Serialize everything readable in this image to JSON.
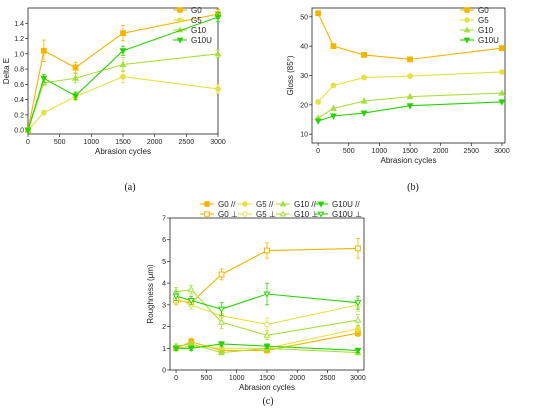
{
  "chart_data": [
    {
      "type": "line",
      "caption": "(a)",
      "xlabel": "Abrasion cycles",
      "ylabel": "Delta E",
      "xlim": [
        0,
        3000
      ],
      "ylim": [
        -0.05,
        1.6
      ],
      "xticks": [
        0,
        500,
        1000,
        1500,
        2000,
        2500,
        3000
      ],
      "yticks": [
        0.0,
        0.2,
        0.4,
        0.6,
        0.8,
        1.0,
        1.2,
        1.4
      ],
      "ytick_labels": [
        "0.0",
        "0.2",
        "0.4",
        "0.6",
        "0.8",
        "1.0",
        "1.2",
        "1.4"
      ],
      "legend_position": "top-right",
      "series": [
        {
          "name": "G0",
          "color": "#f5b400",
          "marker": "square",
          "x": [
            0,
            250,
            750,
            1500,
            3000
          ],
          "y": [
            0.0,
            1.04,
            0.82,
            1.27,
            1.52
          ],
          "err": [
            0,
            0.14,
            0.07,
            0.1,
            0.06
          ]
        },
        {
          "name": "G5",
          "color": "#e8e040",
          "marker": "circle",
          "x": [
            0,
            250,
            750,
            1500,
            3000
          ],
          "y": [
            0.0,
            0.23,
            0.44,
            0.7,
            0.54
          ],
          "err": [
            0,
            0.03,
            0.05,
            0.08,
            0.06
          ]
        },
        {
          "name": "G10",
          "color": "#a6e03c",
          "marker": "triangle-up",
          "x": [
            0,
            250,
            750,
            1500,
            3000
          ],
          "y": [
            0.0,
            0.62,
            0.68,
            0.86,
            1.0
          ],
          "err": [
            0,
            0.04,
            0.06,
            0.09,
            0.05
          ]
        },
        {
          "name": "G10U",
          "color": "#28d200",
          "marker": "triangle-down",
          "x": [
            0,
            250,
            750,
            1500,
            3000
          ],
          "y": [
            0.0,
            0.68,
            0.45,
            1.04,
            1.48
          ],
          "err": [
            0,
            0.05,
            0.05,
            0.06,
            0.06
          ]
        }
      ]
    },
    {
      "type": "line",
      "caption": "(b)",
      "xlabel": "Abrasion cycles",
      "ylabel": "Gloss (85°)",
      "xlim": [
        -100,
        3050
      ],
      "ylim": [
        7,
        53
      ],
      "xticks": [
        0,
        500,
        1000,
        1500,
        2000,
        2500,
        3000
      ],
      "yticks": [
        10,
        20,
        30,
        40,
        50
      ],
      "ytick_labels": [
        "10",
        "20",
        "30",
        "40",
        "50"
      ],
      "legend_position": "top-right",
      "series": [
        {
          "name": "G0",
          "color": "#f5b400",
          "marker": "square",
          "x": [
            0,
            250,
            750,
            1500,
            3000
          ],
          "y": [
            51.2,
            40.0,
            37.0,
            35.5,
            39.3
          ],
          "err": [
            0,
            0,
            0,
            0,
            0
          ]
        },
        {
          "name": "G5",
          "color": "#e8e040",
          "marker": "circle",
          "x": [
            0,
            250,
            750,
            1500,
            3000
          ],
          "y": [
            21.0,
            26.6,
            29.3,
            29.8,
            31.2
          ],
          "err": [
            0,
            0,
            0,
            0,
            0
          ]
        },
        {
          "name": "G10",
          "color": "#a6e03c",
          "marker": "triangle-up",
          "x": [
            0,
            250,
            750,
            1500,
            3000
          ],
          "y": [
            15.5,
            18.8,
            21.3,
            22.8,
            24.0
          ],
          "err": [
            0,
            0,
            0,
            0,
            0
          ]
        },
        {
          "name": "G10U",
          "color": "#28d200",
          "marker": "triangle-down",
          "x": [
            0,
            250,
            750,
            1500,
            3000
          ],
          "y": [
            14.5,
            16.2,
            17.2,
            19.7,
            21.0
          ],
          "err": [
            0,
            0,
            0,
            0,
            0
          ]
        }
      ]
    },
    {
      "type": "line",
      "caption": "(c)",
      "xlabel": "Abrasion cycles",
      "ylabel": "Roughness (μm)",
      "xlim": [
        -100,
        3100
      ],
      "ylim": [
        0,
        7
      ],
      "xticks": [
        0,
        500,
        1000,
        1500,
        2000,
        2500,
        3000
      ],
      "yticks": [
        0,
        1,
        2,
        3,
        4,
        5,
        6,
        7
      ],
      "ytick_labels": [
        "0",
        "1",
        "2",
        "3",
        "4",
        "5",
        "6",
        "7"
      ],
      "legend_position": "top",
      "series": [
        {
          "name": "G0 //",
          "color": "#f5b400",
          "marker": "square",
          "filled": true,
          "x": [
            0,
            250,
            750,
            1500,
            3000
          ],
          "y": [
            1.0,
            1.3,
            0.9,
            0.9,
            1.7
          ],
          "err": [
            0.1,
            0.15,
            0.1,
            0.1,
            0.15
          ]
        },
        {
          "name": "G0 ⊥",
          "color": "#f5b400",
          "marker": "square",
          "filled": false,
          "x": [
            0,
            250,
            750,
            1500,
            3000
          ],
          "y": [
            3.2,
            3.1,
            4.4,
            5.5,
            5.6
          ],
          "err": [
            0.2,
            0.2,
            0.25,
            0.35,
            0.45
          ]
        },
        {
          "name": "G5 //",
          "color": "#e8e040",
          "marker": "circle",
          "filled": true,
          "x": [
            0,
            250,
            750,
            1500,
            3000
          ],
          "y": [
            1.0,
            1.1,
            1.0,
            1.0,
            1.9
          ],
          "err": [
            0.1,
            0.1,
            0.1,
            0.1,
            0.15
          ]
        },
        {
          "name": "G5 ⊥",
          "color": "#e8e040",
          "marker": "circle",
          "filled": false,
          "x": [
            0,
            250,
            750,
            1500,
            3000
          ],
          "y": [
            3.3,
            3.0,
            2.5,
            2.1,
            3.0
          ],
          "err": [
            0.2,
            0.2,
            0.3,
            0.3,
            0.3
          ]
        },
        {
          "name": "G10 //",
          "color": "#a6e03c",
          "marker": "triangle-up",
          "filled": true,
          "x": [
            0,
            250,
            750,
            1500,
            3000
          ],
          "y": [
            1.1,
            1.2,
            0.8,
            1.0,
            0.8
          ],
          "err": [
            0.1,
            0.1,
            0.1,
            0.1,
            0.1
          ]
        },
        {
          "name": "G10 ⊥",
          "color": "#a6e03c",
          "marker": "triangle-up",
          "filled": false,
          "x": [
            0,
            250,
            750,
            1500,
            3000
          ],
          "y": [
            3.6,
            3.7,
            2.2,
            1.6,
            2.3
          ],
          "err": [
            0.2,
            0.2,
            0.3,
            0.2,
            0.25
          ]
        },
        {
          "name": "G10U //",
          "color": "#28d200",
          "marker": "triangle-down",
          "filled": true,
          "x": [
            0,
            250,
            750,
            1500,
            3000
          ],
          "y": [
            1.0,
            1.0,
            1.2,
            1.1,
            0.9
          ],
          "err": [
            0.1,
            0.1,
            0.1,
            0.1,
            0.1
          ]
        },
        {
          "name": "G10U ⊥",
          "color": "#28d200",
          "marker": "triangle-down",
          "filled": false,
          "x": [
            0,
            250,
            750,
            1500,
            3000
          ],
          "y": [
            3.4,
            3.2,
            2.8,
            3.5,
            3.1
          ],
          "err": [
            0.2,
            0.2,
            0.3,
            0.5,
            0.3
          ]
        }
      ]
    }
  ]
}
